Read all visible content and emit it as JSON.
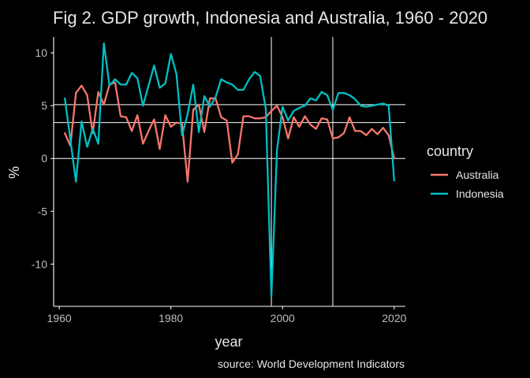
{
  "chart_data": {
    "type": "line",
    "title": "Fig 2. GDP growth, Indonesia and Australia, 1960 - 2020",
    "xlabel": "year",
    "ylabel": "%",
    "caption": "source: World Development Indicators",
    "xlim": [
      1959,
      2022
    ],
    "ylim": [
      -14,
      11.5
    ],
    "xticks": [
      1960,
      1980,
      2000,
      2020
    ],
    "yticks": [
      -10,
      -5,
      0,
      5,
      10
    ],
    "legend": {
      "title": "country",
      "placement": "right"
    },
    "reference_lines": {
      "horizontal": [
        0,
        3.4,
        5.1
      ],
      "vertical": [
        1998,
        2009
      ]
    },
    "x": [
      1961,
      1962,
      1963,
      1964,
      1965,
      1966,
      1967,
      1968,
      1969,
      1970,
      1971,
      1972,
      1973,
      1974,
      1975,
      1976,
      1977,
      1978,
      1979,
      1980,
      1981,
      1982,
      1983,
      1984,
      1985,
      1986,
      1987,
      1988,
      1989,
      1990,
      1991,
      1992,
      1993,
      1994,
      1995,
      1996,
      1997,
      1998,
      1999,
      2000,
      2001,
      2002,
      2003,
      2004,
      2005,
      2006,
      2007,
      2008,
      2009,
      2010,
      2011,
      2012,
      2013,
      2014,
      2015,
      2016,
      2017,
      2018,
      2019,
      2020
    ],
    "series": [
      {
        "name": "Australia",
        "color": "#f8766d",
        "values": [
          2.4,
          1.2,
          6.2,
          6.9,
          6.0,
          2.4,
          6.3,
          5.1,
          7.0,
          7.2,
          4.0,
          3.9,
          2.6,
          4.1,
          1.4,
          2.6,
          3.7,
          0.9,
          4.1,
          3.0,
          3.4,
          3.3,
          -2.2,
          4.6,
          5.1,
          2.5,
          5.7,
          5.7,
          3.9,
          3.6,
          -0.4,
          0.4,
          4.0,
          4.0,
          3.8,
          3.8,
          3.9,
          4.5,
          5.0,
          3.9,
          1.9,
          3.9,
          3.0,
          4.0,
          3.2,
          2.8,
          3.8,
          3.7,
          1.9,
          2.0,
          2.4,
          3.9,
          2.6,
          2.6,
          2.2,
          2.8,
          2.3,
          2.9,
          2.2,
          0.0
        ]
      },
      {
        "name": "Indonesia",
        "color": "#00bfc4",
        "values": [
          5.7,
          1.8,
          -2.2,
          3.5,
          1.1,
          2.8,
          1.4,
          10.9,
          6.9,
          7.5,
          7.0,
          7.0,
          8.1,
          7.6,
          5.0,
          6.9,
          8.8,
          6.7,
          7.1,
          9.9,
          8.0,
          2.2,
          4.2,
          7.0,
          2.5,
          5.9,
          4.9,
          5.8,
          7.5,
          7.2,
          7.0,
          6.5,
          6.5,
          7.5,
          8.2,
          7.8,
          4.7,
          -13.1,
          0.8,
          4.9,
          3.6,
          4.5,
          4.8,
          5.0,
          5.7,
          5.5,
          6.3,
          6.0,
          4.6,
          6.2,
          6.2,
          6.0,
          5.6,
          5.0,
          4.9,
          5.0,
          5.1,
          5.2,
          5.0,
          -2.1
        ]
      }
    ]
  }
}
